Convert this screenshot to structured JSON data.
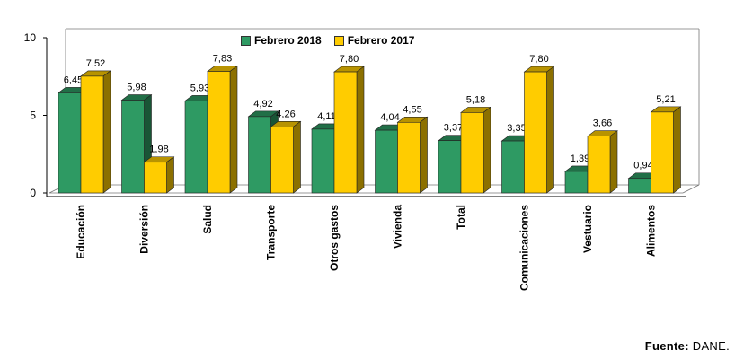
{
  "chart_data": {
    "type": "bar",
    "categories": [
      "Educación",
      "Diversión",
      "Salud",
      "Transporte",
      "Otros gastos",
      "Vivienda",
      "Total",
      "Comunicaciones",
      "Vestuario",
      "Alimentos"
    ],
    "series": [
      {
        "name": "Febrero 2018",
        "values": [
          6.45,
          5.98,
          5.93,
          4.92,
          4.11,
          4.04,
          3.37,
          3.35,
          1.39,
          0.94
        ],
        "labels": [
          "6,45",
          "5,98",
          "5,93",
          "4,92",
          "4,11",
          "4,04",
          "3,37",
          "3,35",
          "1,39",
          "0,94"
        ],
        "color": "#2e9a63"
      },
      {
        "name": "Febrero 2017",
        "values": [
          7.52,
          1.98,
          7.83,
          4.26,
          7.8,
          4.55,
          5.18,
          7.8,
          3.66,
          5.21
        ],
        "labels": [
          "7,52",
          "1,98",
          "7,83",
          "4,26",
          "7,80",
          "4,55",
          "5,18",
          "7,80",
          "3,66",
          "5,21"
        ],
        "color": "#ffcc00"
      }
    ],
    "yticks": [
      "0",
      "5",
      "10"
    ],
    "ylim": [
      0,
      10
    ],
    "grid": false,
    "legend_position": "top-center"
  },
  "source": {
    "label": "Fuente:",
    "text": "DANE."
  }
}
